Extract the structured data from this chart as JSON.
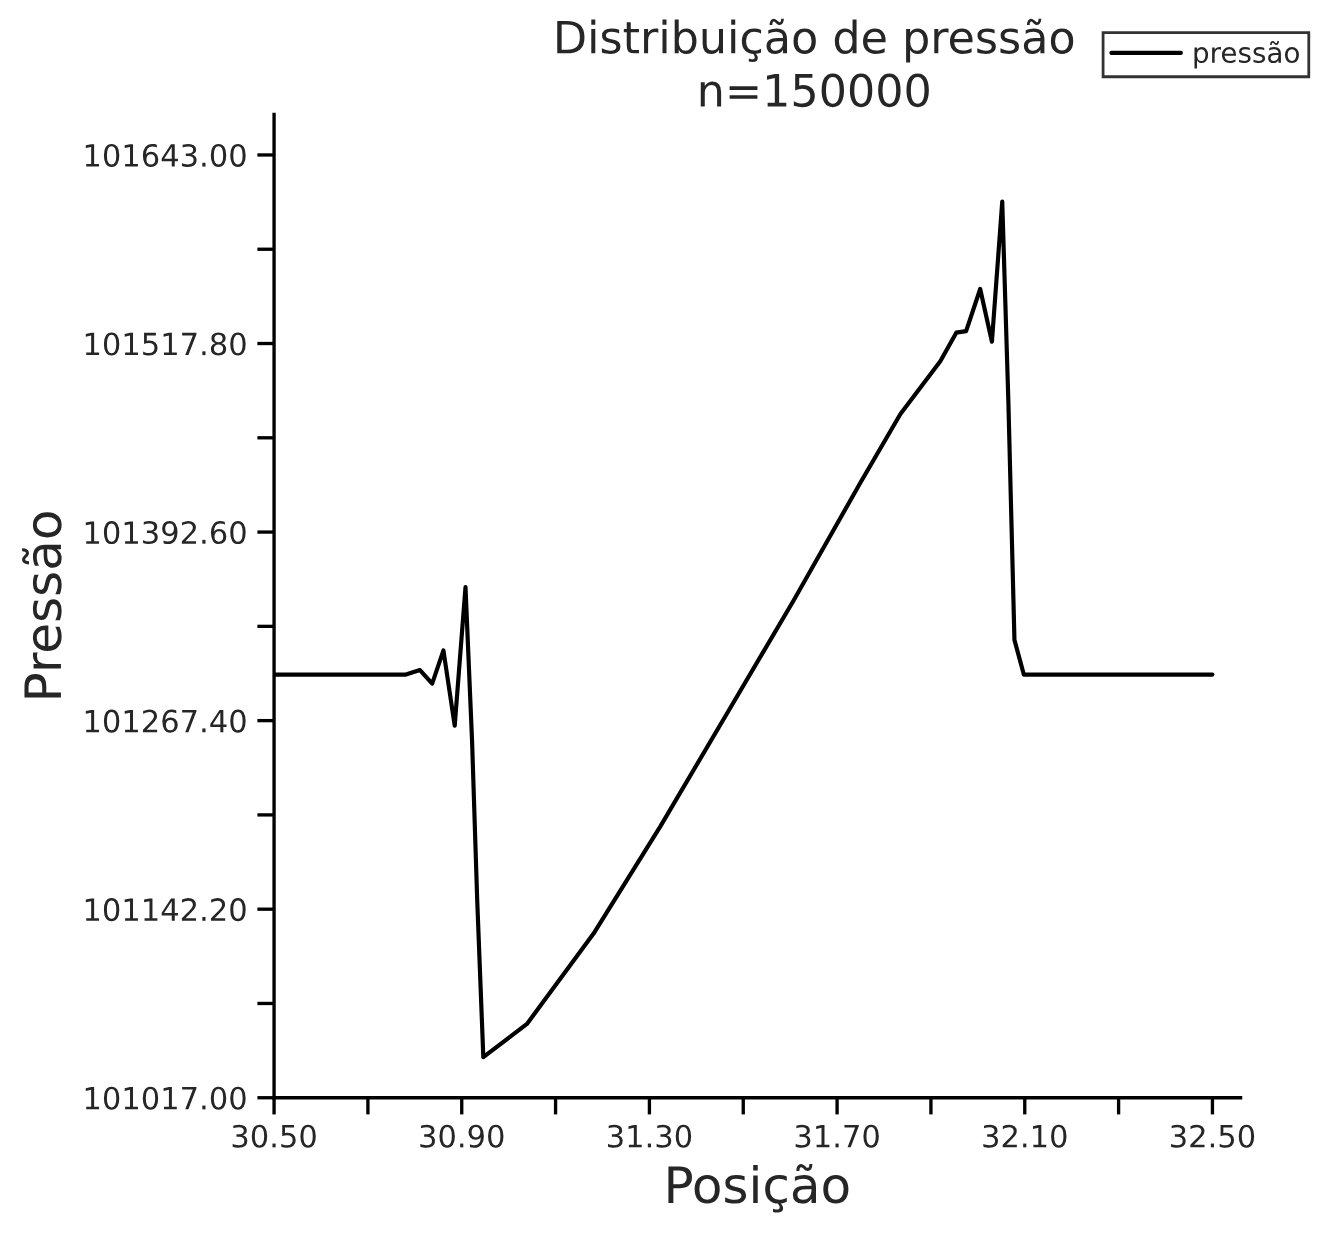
{
  "chart_data": {
    "type": "line",
    "title": "Distribuição de pressão\nn=150000",
    "xlabel": "Posição",
    "ylabel": "Pressão",
    "x": [
      30.5,
      30.781,
      30.811,
      30.837,
      30.861,
      30.885,
      30.908,
      30.922,
      30.933,
      30.946,
      31.039,
      31.181,
      31.323,
      31.465,
      31.607,
      31.749,
      31.835,
      31.92,
      31.954,
      31.975,
      32.005,
      32.03,
      32.052,
      32.065,
      32.078,
      32.098,
      32.5
    ],
    "series": [
      {
        "name": "pressão",
        "color": "#000000",
        "values": [
          101298,
          101298,
          101301,
          101292,
          101314,
          101264,
          101356,
          101254,
          101148,
          101044,
          101066,
          101126,
          101197,
          101272,
          101347,
          101425,
          101471,
          101506,
          101525,
          101526,
          101554,
          101519,
          101612,
          101480,
          101321,
          101298,
          101298
        ]
      }
    ],
    "xlim": [
      30.5,
      32.56
    ],
    "ylim": [
      101017,
      101670
    ],
    "xticks": [
      {
        "value": 30.5,
        "label": "30.50"
      },
      {
        "value": 30.7,
        "label": null
      },
      {
        "value": 30.9,
        "label": "30.90"
      },
      {
        "value": 31.1,
        "label": null
      },
      {
        "value": 31.3,
        "label": "31.30"
      },
      {
        "value": 31.5,
        "label": null
      },
      {
        "value": 31.7,
        "label": "31.70"
      },
      {
        "value": 31.9,
        "label": null
      },
      {
        "value": 32.1,
        "label": "32.10"
      },
      {
        "value": 32.3,
        "label": null
      },
      {
        "value": 32.5,
        "label": "32.50"
      }
    ],
    "yticks": [
      {
        "value": 101017.0,
        "label": "101017.00"
      },
      {
        "value": 101079.6,
        "label": null
      },
      {
        "value": 101142.2,
        "label": "101142.20"
      },
      {
        "value": 101204.8,
        "label": null
      },
      {
        "value": 101267.4,
        "label": "101267.40"
      },
      {
        "value": 101330.0,
        "label": null
      },
      {
        "value": 101392.6,
        "label": "101392.60"
      },
      {
        "value": 101455.2,
        "label": null
      },
      {
        "value": 101517.8,
        "label": "101517.80"
      },
      {
        "value": 101580.4,
        "label": null
      },
      {
        "value": 101643.0,
        "label": "101643.00"
      }
    ],
    "grid": false,
    "legend": "top right",
    "marker": "none",
    "line_style": "solid"
  }
}
